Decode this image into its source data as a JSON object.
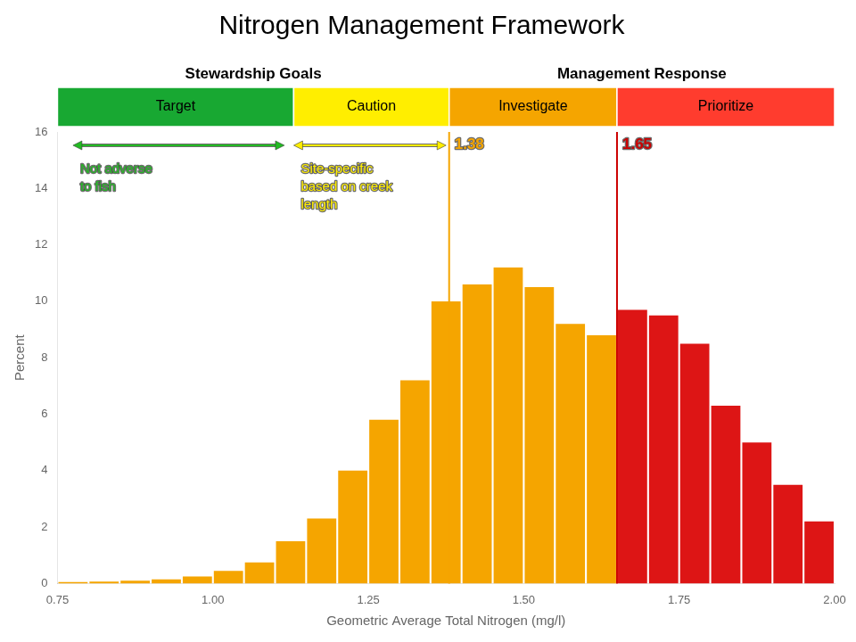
{
  "chart_data": {
    "type": "histogram",
    "title": "Nitrogen Management Framework",
    "xlabel": "Geometric Average Total Nitrogen (mg/l)",
    "ylabel": "Percent",
    "bins": [
      0.75,
      0.8,
      0.85,
      0.9,
      0.95,
      1.0,
      1.05,
      1.1,
      1.15,
      1.2,
      1.25,
      1.3,
      1.35,
      1.4,
      1.45,
      1.5,
      1.55,
      1.6,
      1.65,
      1.7,
      1.75,
      1.8,
      1.85,
      1.9,
      1.95,
      2.0
    ],
    "values": [
      0.05,
      0.07,
      0.1,
      0.15,
      0.25,
      0.45,
      0.75,
      1.5,
      2.3,
      4.0,
      5.8,
      7.2,
      10.0,
      10.6,
      11.2,
      10.5,
      9.2,
      8.8,
      9.7,
      9.5,
      8.5,
      6.3,
      5.0,
      3.5,
      2.2
    ],
    "colors": [
      "#f5a500",
      "#f5a500",
      "#f5a500",
      "#f5a500",
      "#f5a500",
      "#f5a500",
      "#f5a500",
      "#f5a500",
      "#f5a500",
      "#f5a500",
      "#f5a500",
      "#f5a500",
      "#f5a500",
      "#f5a500",
      "#f5a500",
      "#f5a500",
      "#f5a500",
      "#f5a500",
      "#dd1515",
      "#dd1515",
      "#dd1515",
      "#dd1515",
      "#dd1515",
      "#dd1515",
      "#dd1515"
    ],
    "xlim": [
      0.75,
      2.0
    ],
    "ylim": [
      0,
      16
    ],
    "xticks": [
      0.75,
      {
        "value": 1.0,
        "label": "1.00"
      },
      1.25,
      {
        "value": 1.5,
        "label": "1.50"
      },
      1.75,
      {
        "value": 2.0,
        "label": "2.00"
      }
    ],
    "yticks": [
      0,
      2,
      4,
      6,
      8,
      10,
      12,
      14,
      16
    ],
    "grid": false,
    "zones": [
      {
        "label": "Target",
        "color": "#18a832",
        "x": [
          0.75,
          1.13
        ]
      },
      {
        "label": "Caution",
        "color": "#ffee00",
        "x": [
          1.13,
          1.38
        ]
      },
      {
        "label": "Investigate",
        "color": "#f5a500",
        "x": [
          1.38,
          1.65
        ]
      },
      {
        "label": "Prioritize",
        "color": "#ff3c2e",
        "x": [
          1.65,
          2.0
        ]
      }
    ],
    "zone_groups": [
      "Stewardship Goals",
      "Management Response"
    ],
    "annotations": [
      {
        "kind": "vline",
        "x": 1.38,
        "color": "#f5a500",
        "text": "1.38"
      },
      {
        "kind": "vline",
        "x": 1.65,
        "color": "#cc0000",
        "text": "1.65"
      },
      {
        "kind": "arrow",
        "x": [
          0.775,
          1.115
        ],
        "color": "#22bb22",
        "text": "Not adverse\nto fish"
      },
      {
        "kind": "arrow",
        "x": [
          1.13,
          1.375
        ],
        "color": "#ffee00",
        "text": "Site-specific\nbased on creek\nlength"
      }
    ]
  }
}
